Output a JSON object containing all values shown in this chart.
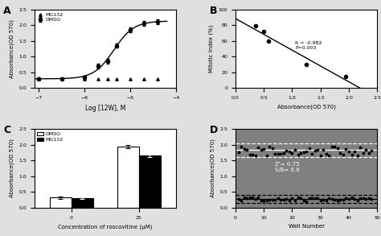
{
  "panel_A": {
    "dmso_x": [
      -7,
      -6.5,
      -6,
      -5.7,
      -5.5,
      -5.3,
      -5.0,
      -4.7,
      -4.4
    ],
    "dmso_y": [
      0.3,
      0.3,
      0.35,
      0.7,
      0.85,
      1.35,
      1.85,
      2.05,
      2.1
    ],
    "dmso_err": [
      0.03,
      0.03,
      0.05,
      0.07,
      0.07,
      0.07,
      0.08,
      0.08,
      0.08
    ],
    "mg132_x": [
      -7,
      -6.5,
      -6,
      -5.7,
      -5.5,
      -5.3,
      -5.0,
      -4.7,
      -4.4
    ],
    "mg132_y": [
      0.28,
      0.28,
      0.28,
      0.3,
      0.28,
      0.28,
      0.28,
      0.3,
      0.28
    ],
    "xlabel": "Log [12W], M",
    "ylabel": "Absorbance(OD 570)",
    "xlim": [
      -7.1,
      -4.2
    ],
    "ylim": [
      0.0,
      2.5
    ],
    "label": "A"
  },
  "panel_B": {
    "x": [
      0.35,
      0.5,
      0.58,
      1.25,
      1.95
    ],
    "y": [
      79,
      72,
      60,
      30,
      15
    ],
    "xlabel": "Absorbance(OD 570)",
    "ylabel": "Mitotic Index (%)",
    "xlim": [
      0,
      2.5
    ],
    "ylim": [
      0,
      100
    ],
    "annotation": "R = -0.982\nP=0.003",
    "label": "B"
  },
  "panel_C": {
    "categories": [
      "0",
      "25"
    ],
    "dmso_vals": [
      0.32,
      1.95
    ],
    "dmso_err": [
      0.03,
      0.05
    ],
    "mg132_vals": [
      0.3,
      1.65
    ],
    "mg132_err": [
      0.03,
      0.04
    ],
    "xlabel": "Concentration of roscovitine (μM)",
    "ylabel": "Absorbance(OD 570)",
    "ylim": [
      0,
      2.5
    ],
    "label": "C"
  },
  "panel_D": {
    "n_wells": 48,
    "high_mean": 1.85,
    "high_3sd_upper": 2.05,
    "high_3sd_lower": 1.6,
    "low_mean": 0.28,
    "low_3sd_upper": 0.4,
    "low_3sd_lower": 0.16,
    "high_base": 1.8,
    "high_spread": 0.15,
    "low_base": 0.27,
    "low_spread": 0.06,
    "xlabel": "Well Number",
    "ylabel": "Absorbance(OD 570)",
    "ylim": [
      0,
      2.5
    ],
    "yticks": [
      0,
      0.5,
      1.0,
      1.5,
      2.0,
      2.5
    ],
    "annotation": "Z'= 0.75\nS/B= 6.6",
    "label": "D",
    "bg_color": "#808080"
  },
  "fig_bg": "#e0e0e0",
  "axes_bg": "#ffffff"
}
